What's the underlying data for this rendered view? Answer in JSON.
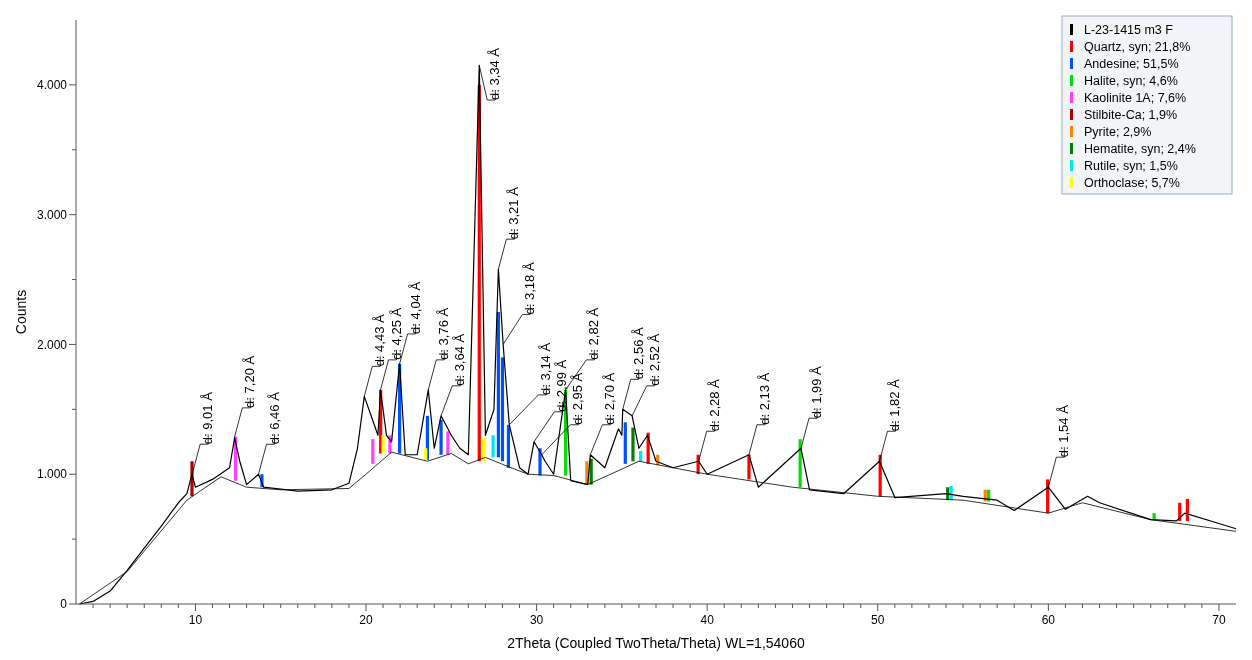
{
  "chart_data": {
    "type": "line",
    "xlabel": "2Theta (Coupled TwoTheta/Theta) WL=1,54060",
    "ylabel": "Counts",
    "xlim": [
      3,
      71
    ],
    "ylim": [
      0,
      4500
    ],
    "xticks": [
      {
        "value": 4,
        "label": null
      },
      {
        "value": 5,
        "label": null
      },
      {
        "value": 6,
        "label": null
      },
      {
        "value": 7,
        "label": null
      },
      {
        "value": 8,
        "label": null
      },
      {
        "value": 9,
        "label": null
      },
      10,
      {
        "value": 11,
        "label": null
      },
      {
        "value": 12,
        "label": null
      },
      {
        "value": 13,
        "label": null
      },
      {
        "value": 14,
        "label": null
      },
      {
        "value": 15,
        "label": null
      },
      {
        "value": 16,
        "label": null
      },
      {
        "value": 17,
        "label": null
      },
      {
        "value": 18,
        "label": null
      },
      {
        "value": 19,
        "label": null
      },
      20,
      {
        "value": 21,
        "label": null
      },
      {
        "value": 22,
        "label": null
      },
      {
        "value": 23,
        "label": null
      },
      {
        "value": 24,
        "label": null
      },
      {
        "value": 25,
        "label": null
      },
      {
        "value": 26,
        "label": null
      },
      {
        "value": 27,
        "label": null
      },
      {
        "value": 28,
        "label": null
      },
      {
        "value": 29,
        "label": null
      },
      30,
      {
        "value": 31,
        "label": null
      },
      {
        "value": 32,
        "label": null
      },
      {
        "value": 33,
        "label": null
      },
      {
        "value": 34,
        "label": null
      },
      {
        "value": 35,
        "label": null
      },
      {
        "value": 36,
        "label": null
      },
      {
        "value": 37,
        "label": null
      },
      {
        "value": 38,
        "label": null
      },
      {
        "value": 39,
        "label": null
      },
      40,
      {
        "value": 41,
        "label": null
      },
      {
        "value": 42,
        "label": null
      },
      {
        "value": 43,
        "label": null
      },
      {
        "value": 44,
        "label": null
      },
      {
        "value": 45,
        "label": null
      },
      {
        "value": 46,
        "label": null
      },
      {
        "value": 47,
        "label": null
      },
      {
        "value": 48,
        "label": null
      },
      {
        "value": 49,
        "label": null
      },
      50,
      {
        "value": 51,
        "label": null
      },
      {
        "value": 52,
        "label": null
      },
      {
        "value": 53,
        "label": null
      },
      {
        "value": 54,
        "label": null
      },
      {
        "value": 55,
        "label": null
      },
      {
        "value": 56,
        "label": null
      },
      {
        "value": 57,
        "label": null
      },
      {
        "value": 58,
        "label": null
      },
      {
        "value": 59,
        "label": null
      },
      60,
      {
        "value": 61,
        "label": null
      },
      {
        "value": 62,
        "label": null
      },
      {
        "value": 63,
        "label": null
      },
      {
        "value": 64,
        "label": null
      },
      {
        "value": 65,
        "label": null
      },
      {
        "value": 66,
        "label": null
      },
      {
        "value": 67,
        "label": null
      },
      {
        "value": 68,
        "label": null
      },
      {
        "value": 69,
        "label": null
      },
      70
    ],
    "yticks": [
      0,
      {
        "value": 500,
        "label": null
      },
      {
        "value": 1000,
        "label": "1.000"
      },
      {
        "value": 1500,
        "label": null
      },
      {
        "value": 2000,
        "label": "2.000"
      },
      {
        "value": 2500,
        "label": null
      },
      {
        "value": 3000,
        "label": "3.000"
      },
      {
        "value": 3500,
        "label": null
      },
      {
        "value": 4000,
        "label": "4.000"
      }
    ],
    "grid": false,
    "legend": "top right",
    "marker": "none",
    "line_style": "solid",
    "series": [
      {
        "name": "L-23-1415 m3 F",
        "color": "#000000",
        "x": [
          3.2,
          4,
          5,
          6,
          7,
          8,
          9,
          9.5,
          9.8,
          10,
          11,
          12,
          12.3,
          12.6,
          13,
          13.7,
          14,
          16,
          18,
          19,
          19.5,
          19.9,
          20.3,
          20.7,
          20.85,
          21.2,
          21.5,
          21.97,
          22.3,
          23,
          23.65,
          24,
          24.4,
          25,
          25.5,
          26,
          26.64,
          27,
          27.5,
          27.76,
          28.04,
          28.4,
          29,
          29.5,
          29.85,
          30.3,
          30.5,
          31,
          31.7,
          32,
          33,
          33.15,
          34,
          34.8,
          35,
          35.05,
          35.6,
          36,
          36.5,
          37,
          38,
          39.5,
          40,
          42.45,
          43,
          45.5,
          46,
          48,
          50.1,
          51,
          54,
          55,
          57,
          58,
          60,
          61,
          62.3,
          63,
          66,
          67.5,
          68,
          70,
          71
        ],
        "values": [
          0,
          20,
          100,
          260,
          430,
          600,
          780,
          850,
          1000,
          900,
          960,
          1050,
          1280,
          1100,
          920,
          1000,
          900,
          870,
          880,
          930,
          1200,
          1600,
          1450,
          1300,
          1650,
          1300,
          1250,
          1850,
          1150,
          1150,
          1650,
          1200,
          1450,
          1300,
          1200,
          1150,
          4150,
          1300,
          1500,
          2580,
          2000,
          1380,
          1050,
          1000,
          1250,
          1150,
          1100,
          1000,
          1650,
          950,
          920,
          1150,
          1050,
          1350,
          1300,
          1500,
          1450,
          1200,
          1300,
          1100,
          1050,
          1100,
          1000,
          1150,
          900,
          1200,
          880,
          850,
          1100,
          820,
          850,
          830,
          800,
          720,
          900,
          730,
          830,
          780,
          650,
          640,
          700,
          620,
          580
        ]
      },
      {
        "color": "#000000",
        "x": [
          3.2,
          6,
          9.5,
          11.5,
          13,
          15,
          19,
          20,
          21.5,
          23,
          23.6,
          25,
          26,
          27,
          28.5,
          29.5,
          31,
          33,
          36,
          40,
          45,
          50,
          55,
          58,
          60,
          62,
          66,
          71
        ],
        "values": [
          0,
          250,
          800,
          980,
          900,
          880,
          890,
          1000,
          1170,
          1120,
          1100,
          1160,
          1080,
          1130,
          1050,
          1000,
          990,
          920,
          1100,
          1000,
          900,
          830,
          800,
          740,
          700,
          780,
          650,
          560
        ]
      },
      {
        "name": "Quartz, syn; 21,8%",
        "type": "bar",
        "color": "#ff0000",
        "x": [
          20.86,
          26.64,
          36.54,
          39.47,
          42.45,
          50.14,
          59.96,
          67.7,
          68.15
        ],
        "base": [
          1160,
          1100,
          1080,
          1000,
          960,
          830,
          700,
          640,
          640
        ],
        "values": [
          490,
          2900,
          240,
          150,
          190,
          320,
          260,
          140,
          170
        ]
      },
      {
        "name": "Andesine; 51,5%",
        "type": "bar",
        "color": "#0050ff",
        "x": [
          13.9,
          21.97,
          23.6,
          24.4,
          27.76,
          28.0,
          28.35,
          30.2,
          35.2
        ],
        "base": [
          900,
          1160,
          1110,
          1150,
          1130,
          1100,
          1050,
          990,
          1080
        ],
        "values": [
          100,
          690,
          340,
          270,
          1120,
          800,
          330,
          210,
          320
        ]
      },
      {
        "name": "Halite, syn; 4,6%",
        "type": "bar",
        "color": "#00e000",
        "x": [
          31.7,
          45.45,
          56.5,
          66.2
        ],
        "base": [
          990,
          900,
          790,
          650
        ],
        "values": [
          660,
          370,
          90,
          50
        ]
      },
      {
        "name": "Kaolinite 1A; 7,6%",
        "type": "bar",
        "color": "#ff40ff",
        "x": [
          12.35,
          20.4,
          21.4,
          24.8
        ],
        "base": [
          950,
          1080,
          1160,
          1150
        ],
        "values": [
          340,
          190,
          140,
          180
        ]
      },
      {
        "name": "Stilbite-Ca; 1,9%",
        "type": "bar",
        "color": "#b00000",
        "x": [
          9.8
        ],
        "base": [
          830
        ],
        "values": [
          270
        ]
      },
      {
        "name": "Pyrite; 2,9%",
        "type": "bar",
        "color": "#ff8000",
        "x": [
          32.95,
          37.1,
          56.3
        ],
        "base": [
          920,
          1070,
          790
        ],
        "values": [
          180,
          80,
          90
        ]
      },
      {
        "name": "Hematite, syn; 2,4%",
        "type": "bar",
        "color": "#008000",
        "x": [
          33.2,
          35.65,
          54.1
        ],
        "base": [
          920,
          1100,
          800
        ],
        "values": [
          200,
          260,
          100
        ]
      },
      {
        "name": "Rutile, syn; 1,5%",
        "type": "bar",
        "color": "#00e5ee",
        "x": [
          27.45,
          36.1,
          54.3
        ],
        "base": [
          1130,
          1100,
          800
        ],
        "values": [
          170,
          80,
          110
        ]
      },
      {
        "name": "Orthoclase; 5,7%",
        "type": "bar",
        "color": "#ffff00",
        "x": [
          21.0,
          23.5,
          26.9
        ],
        "base": [
          1160,
          1110,
          1100
        ],
        "values": [
          140,
          90,
          180
        ]
      }
    ],
    "annotations": [
      {
        "text": "d: 9,01 Å",
        "x": 9.81,
        "y": 1000
      },
      {
        "text": "d: 7,20 Å",
        "x": 12.28,
        "y": 1280
      },
      {
        "text": "d: 6,46 Å",
        "x": 13.7,
        "y": 1000
      },
      {
        "text": "d: 4,43 Å",
        "x": 19.9,
        "y": 1600
      },
      {
        "text": "d: 4,25 Å",
        "x": 20.85,
        "y": 1650
      },
      {
        "text": "d: 4,04 Å",
        "x": 21.97,
        "y": 1850
      },
      {
        "text": "d: 3,76 Å",
        "x": 23.65,
        "y": 1650
      },
      {
        "text": "d: 3,64 Å",
        "x": 24.4,
        "y": 1450
      },
      {
        "text": "d: 3,34 Å",
        "x": 26.64,
        "y": 4150
      },
      {
        "text": "d: 3,21 Å",
        "x": 27.76,
        "y": 2580
      },
      {
        "text": "d: 3,18 Å",
        "x": 28.04,
        "y": 2000
      },
      {
        "text": "d: 3,14 Å",
        "x": 28.4,
        "y": 1380
      },
      {
        "text": "d: 2,99 Å",
        "x": 29.85,
        "y": 1250
      },
      {
        "text": "d: 2,95 Å",
        "x": 30.3,
        "y": 1150
      },
      {
        "text": "d: 2,82 Å",
        "x": 31.7,
        "y": 1650
      },
      {
        "text": "d: 2,70 Å",
        "x": 33.15,
        "y": 1150
      },
      {
        "text": "d: 2,56 Å",
        "x": 35.05,
        "y": 1500
      },
      {
        "text": "d: 2,52 Å",
        "x": 35.6,
        "y": 1450
      },
      {
        "text": "d: 2,28 Å",
        "x": 39.5,
        "y": 1100
      },
      {
        "text": "d: 2,13 Å",
        "x": 42.45,
        "y": 1150
      },
      {
        "text": "d: 1,99 Å",
        "x": 45.5,
        "y": 1200
      },
      {
        "text": "d: 1,82 Å",
        "x": 50.1,
        "y": 1100
      },
      {
        "text": "d: 1,54 Å",
        "x": 60,
        "y": 900
      }
    ]
  }
}
